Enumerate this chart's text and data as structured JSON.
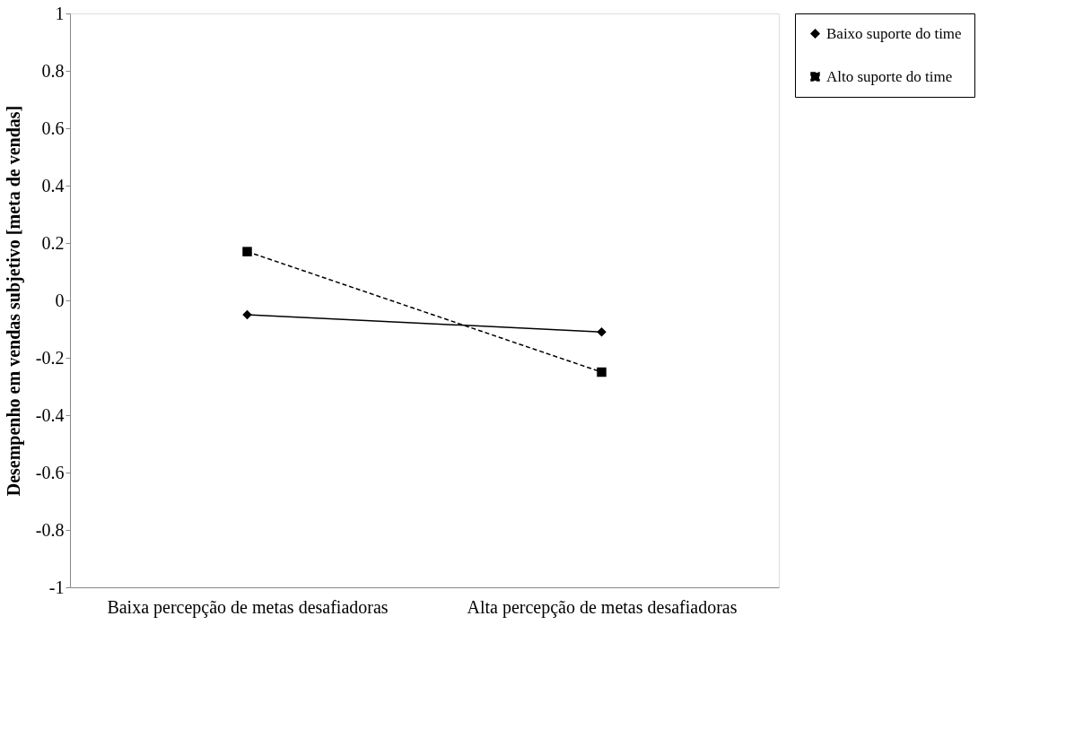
{
  "chart_data": {
    "type": "line",
    "ylabel": "Desempenho em vendas subjetivo [meta de vendas]",
    "categories": [
      "Baixa percepção de metas desafiadoras",
      "Alta percepção de metas desafiadoras"
    ],
    "series": [
      {
        "name": "Baixo suporte do time",
        "color": "#000000",
        "values": [
          -0.05,
          -0.11
        ],
        "marker": "diamond",
        "line_style": "solid"
      },
      {
        "name": "Alto suporte do time",
        "color": "#000000",
        "values": [
          0.17,
          -0.25
        ],
        "marker": "square",
        "line_style": "dashed"
      }
    ],
    "ylim": [
      -1,
      1
    ],
    "yticks": [
      -1,
      -0.8,
      -0.6,
      -0.4,
      -0.2,
      0,
      0.2,
      0.4,
      0.6,
      0.8,
      1
    ],
    "grid": false,
    "legend": "right"
  }
}
